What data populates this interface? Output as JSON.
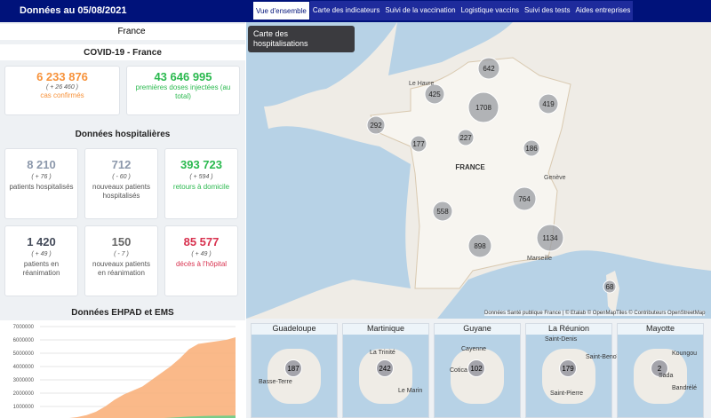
{
  "header": {
    "date": "Données au 05/08/2021",
    "tabs": [
      "Vue d'ensemble",
      "Carte des indicateurs",
      "Suivi de la vaccination",
      "Logistique vaccins",
      "Suivi des tests",
      "Aides entreprises"
    ]
  },
  "sidebar": {
    "region": "France",
    "title": "COVID-19 - France",
    "cards": [
      {
        "value": "6 233 876",
        "delta": "( + 26 460 )",
        "label": "cas confirmés"
      },
      {
        "value": "43 646 995",
        "label": "premières doses injectées (au total)"
      }
    ],
    "hospital_title": "Données hospitalières",
    "hospital_cards": [
      {
        "value": "8 210",
        "delta": "( + 76 )",
        "label": "patients hospitalisés"
      },
      {
        "value": "712",
        "delta": "( - 60 )",
        "label": "nouveaux patients hospitalisés"
      },
      {
        "value": "393 723",
        "delta": "( + 594 )",
        "label": "retours à domicile"
      },
      {
        "value": "1 420",
        "delta": "( + 49 )",
        "label": "patients en réanimation"
      },
      {
        "value": "150",
        "delta": "( - 7 )",
        "label": "nouveaux patients en réanimation"
      },
      {
        "value": "85 577",
        "delta": "( + 49 )",
        "label": "décès à l'hôpital"
      }
    ],
    "ehpad_title": "Données EHPAD et EMS",
    "ehpad_chart": {
      "ylim": [
        0,
        7000000
      ],
      "yticks": [
        1000000,
        2000000,
        3000000,
        4000000,
        5000000,
        6000000,
        7000000
      ],
      "series": [
        {
          "color": "#f9ad74",
          "values": [
            0,
            20000,
            60000,
            120000,
            200000,
            350000,
            600000,
            1000000,
            1500000,
            1900000,
            2200000,
            2500000,
            3000000,
            3500000,
            4000000,
            4600000,
            5300000,
            5700000,
            5800000,
            5900000,
            6000000,
            6200000
          ]
        },
        {
          "color": "#5fd08a",
          "values": [
            0,
            0,
            0,
            0,
            0,
            0,
            0,
            0,
            0,
            10000,
            30000,
            60000,
            90000,
            120000,
            160000,
            200000,
            240000,
            270000,
            290000,
            300000,
            310000,
            320000
          ]
        }
      ]
    }
  },
  "map": {
    "selector": "Carte des hospitalisations",
    "country": "FRANCE",
    "cities": [
      "Le Havre",
      "Genève",
      "Marseille"
    ],
    "bubbles": [
      "642",
      "425",
      "1708",
      "419",
      "292",
      "177",
      "227",
      "186",
      "764",
      "558",
      "898",
      "1134",
      "68"
    ],
    "attribution": "Données Santé publique France | © Etalab © OpenMapTiles © Contributeurs OpenStreetMap"
  },
  "overseas": [
    {
      "name": "Guadeloupe",
      "bubble": "187",
      "places": [
        "Basse-Terre"
      ]
    },
    {
      "name": "Martinique",
      "bubble": "242",
      "places": [
        "La Trinité",
        "Le Marin"
      ]
    },
    {
      "name": "Guyane",
      "bubble": "102",
      "places": [
        "Cayenne",
        "Cotica"
      ]
    },
    {
      "name": "La Réunion",
      "bubble": "179",
      "places": [
        "Saint-Denis",
        "Saint-Benoît",
        "Saint-Pierre"
      ]
    },
    {
      "name": "Mayotte",
      "bubble": "2",
      "places": [
        "Koungou",
        "Sada",
        "Bandrélé"
      ]
    }
  ]
}
